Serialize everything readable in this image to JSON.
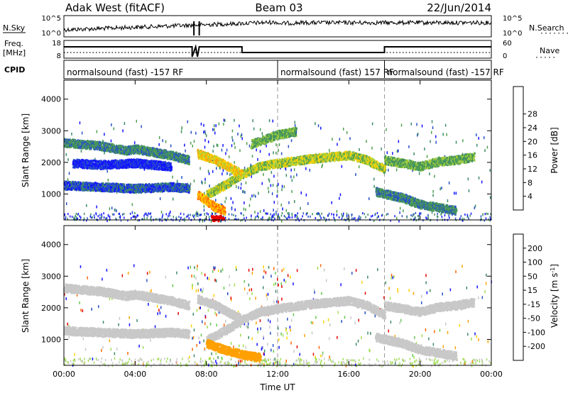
{
  "header": {
    "station": "Adak West (fitACF)",
    "beam": "Beam 03",
    "date": "22/Jun/2014"
  },
  "colors": {
    "axis": "#000000",
    "grid_dash": "#9a9a9a",
    "background": "#ffffff"
  },
  "left_labels": {
    "nsky": "N.Sky",
    "freq_line1": "Freq.",
    "freq_line2": "[MHz]",
    "cpid": "CPID"
  },
  "right_labels": {
    "nsearch": "N.Search",
    "nave": "Nave"
  },
  "noise_panel": {
    "left_ticks": [
      "10^5",
      "10^0"
    ],
    "right_ticks": [
      "10^5",
      "10^0"
    ]
  },
  "freq_panel": {
    "left_ticks": [
      "18",
      "8"
    ],
    "right_ticks": [
      "60",
      "0"
    ]
  },
  "cpid_segments": [
    {
      "text": "normalsound (fast) -157 RF",
      "start_hour": 0
    },
    {
      "text": "normalsound (fast) 157 RF",
      "start_hour": 12
    },
    {
      "text": "normalsound (fast) -157 RF",
      "start_hour": 18
    }
  ],
  "colorbars": {
    "power": {
      "label": "Power [dB]",
      "ticks": [
        "4",
        "8",
        "12",
        "16",
        "20",
        "24",
        "28"
      ],
      "colors": [
        "#1414ff",
        "#2850c8",
        "#3c8c64",
        "#50a050",
        "#aad23c",
        "#ffd200",
        "#ffa000",
        "#ff6400",
        "#ff1e00",
        "#e60000"
      ]
    },
    "velocity": {
      "label": "Velocity [m s^-1]",
      "ticks": [
        "200",
        "100",
        "50",
        "15",
        "-15",
        "-50",
        "-100",
        "-200"
      ],
      "colors": [
        "#1414ff",
        "#2850c8",
        "#3c8c64",
        "#64c850",
        "#a0dc50",
        "#c8c8c8",
        "#ffd200",
        "#ffa000",
        "#ff6400",
        "#e60000"
      ]
    }
  },
  "chart_data": [
    {
      "type": "heatmap",
      "name": "power",
      "ylabel": "Slant Range [km]",
      "xlim": [
        0,
        24
      ],
      "ylim": [
        180,
        4600
      ],
      "yticks": [
        "1000",
        "2000",
        "3000",
        "4000"
      ],
      "xticks": [
        "00:00",
        "04:00",
        "08:00",
        "12:00",
        "16:00",
        "20:00",
        "00:00"
      ],
      "echo_bands": [
        {
          "points": [
            [
              0,
              2650
            ],
            [
              2,
              2550
            ],
            [
              3.5,
              2400
            ],
            [
              4,
              2450
            ],
            [
              5,
              2350
            ],
            [
              6,
              2250
            ],
            [
              7,
              2100
            ]
          ],
          "level": 2
        },
        {
          "points": [
            [
              0.5,
              2000
            ],
            [
              2,
              1950
            ],
            [
              4,
              2000
            ],
            [
              6,
              1900
            ]
          ],
          "level": 0
        },
        {
          "points": [
            [
              0,
              1300
            ],
            [
              2,
              1250
            ],
            [
              4,
              1200
            ],
            [
              6,
              1250
            ],
            [
              7,
              1200
            ]
          ],
          "level": 1
        },
        {
          "points": [
            [
              8,
              1000
            ],
            [
              9,
              1300
            ],
            [
              10,
              1650
            ],
            [
              11,
              1900
            ],
            [
              12,
              2000
            ],
            [
              14,
              2150
            ],
            [
              16,
              2250
            ],
            [
              17,
              2100
            ],
            [
              18,
              1800
            ]
          ],
          "level": 4
        },
        {
          "points": [
            [
              7.5,
              2300
            ],
            [
              8.5,
              2100
            ],
            [
              9.5,
              1800
            ],
            [
              10,
              1650
            ]
          ],
          "level": 5
        },
        {
          "points": [
            [
              10.5,
              2600
            ],
            [
              12,
              2900
            ],
            [
              13,
              3000
            ]
          ],
          "level": 3
        },
        {
          "points": [
            [
              18,
              2100
            ],
            [
              19,
              2000
            ],
            [
              20,
              1900
            ],
            [
              21,
              2050
            ],
            [
              22,
              2100
            ],
            [
              23,
              2200
            ]
          ],
          "level": 3
        },
        {
          "points": [
            [
              17.5,
              1100
            ],
            [
              19,
              900
            ],
            [
              20,
              700
            ],
            [
              21,
              600
            ],
            [
              22,
              500
            ]
          ],
          "level": 2
        },
        {
          "points": [
            [
              7.5,
              1000
            ],
            [
              8,
              800
            ],
            [
              8.5,
              600
            ],
            [
              9,
              500
            ]
          ],
          "level": 6
        }
      ],
      "strong_patch": {
        "hour": 8.6,
        "range": 250,
        "level": 9
      }
    },
    {
      "type": "heatmap",
      "name": "velocity",
      "ylabel": "Slant Range [km]",
      "xlabel": "Time UT",
      "xlim": [
        0,
        24
      ],
      "ylim": [
        180,
        4600
      ],
      "yticks": [
        "1000",
        "2000",
        "3000",
        "4000"
      ],
      "xticks": [
        "00:00",
        "04:00",
        "08:00",
        "12:00",
        "16:00",
        "20:00",
        "00:00"
      ],
      "echo_bands": [
        {
          "points": [
            [
              0,
              2650
            ],
            [
              2,
              2550
            ],
            [
              3.5,
              2400
            ],
            [
              4,
              2450
            ],
            [
              5,
              2350
            ],
            [
              6,
              2250
            ],
            [
              7,
              2100
            ]
          ],
          "level": 5
        },
        {
          "points": [
            [
              0,
              1300
            ],
            [
              2,
              1250
            ],
            [
              4,
              1200
            ],
            [
              6,
              1250
            ],
            [
              7,
              1200
            ]
          ],
          "level": 5
        },
        {
          "points": [
            [
              8,
              1000
            ],
            [
              9,
              1300
            ],
            [
              10,
              1650
            ],
            [
              11,
              1900
            ],
            [
              12,
              2000
            ],
            [
              14,
              2150
            ],
            [
              16,
              2250
            ],
            [
              17,
              2100
            ],
            [
              18,
              1800
            ]
          ],
          "level": 5
        },
        {
          "points": [
            [
              7.5,
              2300
            ],
            [
              8.5,
              2100
            ],
            [
              9.5,
              1800
            ],
            [
              10,
              1650
            ]
          ],
          "level": 5
        },
        {
          "points": [
            [
              18,
              2100
            ],
            [
              19,
              2000
            ],
            [
              20,
              1900
            ],
            [
              21,
              2050
            ],
            [
              22,
              2100
            ],
            [
              23,
              2200
            ]
          ],
          "level": 5
        },
        {
          "points": [
            [
              17.5,
              1100
            ],
            [
              19,
              900
            ],
            [
              20,
              700
            ],
            [
              21,
              600
            ],
            [
              22,
              500
            ]
          ],
          "level": 5
        },
        {
          "points": [
            [
              8,
              900
            ],
            [
              9,
              700
            ],
            [
              10,
              550
            ],
            [
              11,
              450
            ]
          ],
          "level": 7
        }
      ]
    }
  ]
}
